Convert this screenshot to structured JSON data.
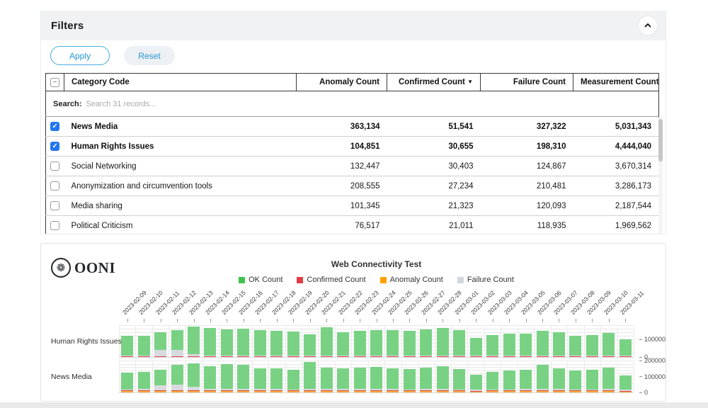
{
  "filters_panel": {
    "title": "Filters",
    "apply_label": "Apply",
    "reset_label": "Reset",
    "table": {
      "headers": [
        "Category Code",
        "Anomaly Count",
        "Confirmed Count",
        "Failure Count",
        "Measurement Count"
      ],
      "sorted_column": "Confirmed Count",
      "sort_indicator": "▼",
      "header_checkbox_state": "indeterminate",
      "header_checkbox_glyph": "–",
      "search_label": "Search:",
      "search_placeholder": "Search 31 records...",
      "rows": [
        {
          "category": "News Media",
          "checked": true,
          "anomaly": "363,134",
          "confirmed": "51,541",
          "failure": "327,322",
          "measurement": "5,031,343"
        },
        {
          "category": "Human Rights Issues",
          "checked": true,
          "anomaly": "104,851",
          "confirmed": "30,655",
          "failure": "198,310",
          "measurement": "4,444,040"
        },
        {
          "category": "Social Networking",
          "checked": false,
          "anomaly": "132,447",
          "confirmed": "30,403",
          "failure": "124,867",
          "measurement": "3,670,314"
        },
        {
          "category": "Anonymization and circumvention tools",
          "checked": false,
          "anomaly": "208,555",
          "confirmed": "27,234",
          "failure": "210,481",
          "measurement": "3,286,173"
        },
        {
          "category": "Media sharing",
          "checked": false,
          "anomaly": "101,345",
          "confirmed": "21,323",
          "failure": "120,093",
          "measurement": "2,187,544"
        },
        {
          "category": "Political Criticism",
          "checked": false,
          "anomaly": "76,517",
          "confirmed": "21,011",
          "failure": "118,935",
          "measurement": "1,969,562"
        }
      ]
    }
  },
  "chart_panel": {
    "logo_text": "OONI",
    "logo_glyph": "❁",
    "title": "Web Connectivity Test",
    "legend": [
      {
        "label": "OK Count",
        "color": "#3fc24c"
      },
      {
        "label": "Confirmed Count",
        "color": "#e23d42"
      },
      {
        "label": "Anomaly Count",
        "color": "#ffa200"
      },
      {
        "label": "Failure Count",
        "color": "#d3d7db"
      }
    ]
  },
  "chart_data": {
    "type": "bar",
    "stacked": true,
    "title": "Web Connectivity Test",
    "legend_position": "top",
    "stack_order_bottom_to_top": [
      "Anomaly Count",
      "Confirmed Count",
      "Failure Count",
      "OK Count"
    ],
    "x": [
      "2023-02-09",
      "2023-02-10",
      "2023-02-11",
      "2023-02-12",
      "2023-02-13",
      "2023-02-14",
      "2023-02-15",
      "2023-02-16",
      "2023-02-17",
      "2023-02-18",
      "2023-02-19",
      "2023-02-20",
      "2023-02-21",
      "2023-02-22",
      "2023-02-23",
      "2023-02-24",
      "2023-02-25",
      "2023-02-26",
      "2023-02-27",
      "2023-02-28",
      "2023-03-01",
      "2023-03-02",
      "2023-03-03",
      "2023-03-04",
      "2023-03-05",
      "2023-03-06",
      "2023-03-07",
      "2023-03-08",
      "2023-03-09",
      "2023-03-10",
      "2023-03-11"
    ],
    "facets": [
      {
        "category": "Human Rights Issues",
        "ylim": [
          0,
          180000
        ],
        "yticks": [
          0,
          100000
        ],
        "grid_step": 20000,
        "series": [
          {
            "name": "Anomaly Count",
            "color": "#ffa200",
            "fill": "#f8ab38",
            "values": [
              3600,
              3400,
              3500,
              3400,
              4200,
              3600,
              3400,
              3500,
              3400,
              3300,
              3500,
              3200,
              3600,
              3400,
              3300,
              3400,
              3500,
              3300,
              3400,
              3600,
              3400,
              2900,
              3100,
              3300,
              3300,
              3500,
              3400,
              3100,
              3200,
              3400,
              2800
            ]
          },
          {
            "name": "Confirmed Count",
            "color": "#e23d42",
            "fill": "#e2484d",
            "values": [
              1000,
              1000,
              1100,
              1000,
              1200,
              1000,
              1000,
              1000,
              1000,
              900,
              1000,
              900,
              1100,
              1000,
              1000,
              1000,
              1000,
              900,
              1000,
              1100,
              1000,
              800,
              900,
              1000,
              1000,
              1000,
              1000,
              900,
              900,
              1000,
              800
            ]
          },
          {
            "name": "Failure Count",
            "color": "#d3d7db",
            "fill": "#d8dbde",
            "values": [
              4000,
              4200,
              36000,
              34000,
              10000,
              4500,
              4200,
              4300,
              4100,
              4000,
              4200,
              3800,
              4500,
              4200,
              4000,
              4100,
              4200,
              4000,
              4100,
              4400,
              4100,
              3500,
              3800,
              4000,
              4000,
              4200,
              4100,
              3700,
              3800,
              4100,
              3400
            ]
          },
          {
            "name": "OK Count",
            "color": "#3fc24c",
            "fill": "#79d284",
            "values": [
              111400,
              111400,
              99400,
              113600,
              156600,
              154900,
              147400,
              151200,
              143500,
              139800,
              135300,
              120100,
              158800,
              131400,
              139700,
              143500,
              143300,
              139800,
              147500,
              154900,
              143500,
              100800,
              116200,
              123700,
              123700,
              139300,
              131500,
              112300,
              118100,
              127500,
              93000
            ]
          }
        ]
      },
      {
        "category": "News Media",
        "ylim": [
          0,
          200000
        ],
        "yticks": [
          0,
          100000,
          200000
        ],
        "grid_step": 20000,
        "series": [
          {
            "name": "Anomaly Count",
            "color": "#ffa200",
            "fill": "#f8ab38",
            "values": [
              11000,
              11500,
              11200,
              12500,
              13000,
              12000,
              12500,
              12000,
              11500,
              11500,
              11000,
              13500,
              11800,
              11500,
              11800,
              12000,
              11500,
              11200,
              11800,
              12500,
              11200,
              9500,
              10500,
              11000,
              11500,
              12500,
              11500,
              11000,
              11200,
              11800,
              9000
            ]
          },
          {
            "name": "Confirmed Count",
            "color": "#e23d42",
            "fill": "#e2484d",
            "values": [
              1600,
              1700,
              1700,
              1800,
              1900,
              1700,
              1800,
              1700,
              1600,
              1600,
              1600,
              1900,
              1700,
              1600,
              1700,
              1700,
              1600,
              1600,
              1700,
              1800,
              1600,
              1400,
              1500,
              1600,
              1600,
              1800,
              1600,
              1500,
              1600,
              1700,
              1300
            ]
          },
          {
            "name": "Failure Count",
            "color": "#d3d7db",
            "fill": "#d8dbde",
            "values": [
              7000,
              7200,
              30000,
              35000,
              22000,
              7500,
              7800,
              7500,
              7000,
              7000,
              6800,
              8500,
              10000,
              7200,
              7400,
              7500,
              7200,
              7000,
              7400,
              7800,
              7000,
              6000,
              6500,
              6800,
              7000,
              7600,
              7000,
              6600,
              6800,
              7400,
              5800
            ]
          },
          {
            "name": "OK Count",
            "color": "#3fc24c",
            "fill": "#79d284",
            "values": [
              104400,
              108600,
              99100,
              123700,
              145100,
              142800,
              155900,
              151800,
              130900,
              130900,
              122600,
              167100,
              132500,
              130700,
              135100,
              138800,
              129700,
              127200,
              135100,
              141900,
              127200,
              94100,
              110500,
              118600,
              121900,
              151100,
              130900,
              118900,
              122400,
              135100,
              90900
            ]
          }
        ]
      }
    ]
  }
}
